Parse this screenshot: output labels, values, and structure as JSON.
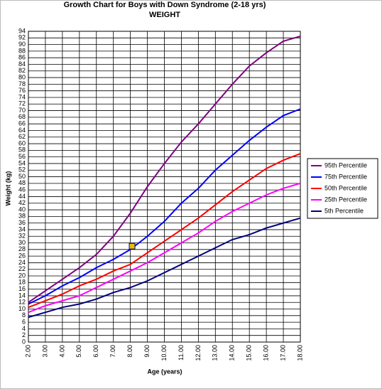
{
  "chart_data": {
    "type": "line",
    "title": "Growth Chart for Boys with Down Syndrome (2-18 yrs)",
    "subtitle": "WEIGHT",
    "x_label": "Age (years)",
    "y_label": "Weight (kg)",
    "x": [
      2,
      3,
      4,
      5,
      6,
      7,
      8,
      9,
      10,
      11,
      12,
      13,
      14,
      15,
      16,
      17,
      18
    ],
    "series": [
      {
        "name": "95th Percentile",
        "color": "#800080",
        "values": [
          12,
          15.5,
          19,
          22.5,
          26.5,
          32,
          39,
          47,
          54,
          60.5,
          66,
          72,
          78,
          83.5,
          87.5,
          91,
          92.5
        ]
      },
      {
        "name": "75th Percentile",
        "color": "#0000ff",
        "values": [
          11.5,
          14,
          17,
          19.5,
          22.5,
          25,
          28,
          32,
          36.5,
          42,
          46.5,
          52,
          56.5,
          61,
          65,
          68.5,
          70.5
        ]
      },
      {
        "name": "50th Percentile",
        "color": "#ff0000",
        "values": [
          10.5,
          12.5,
          14.5,
          17,
          19,
          21.5,
          23.5,
          27,
          30.5,
          34,
          37.5,
          41.5,
          45.5,
          49,
          52.5,
          55,
          57
        ]
      },
      {
        "name": "25th Percentile",
        "color": "#ff00ff",
        "values": [
          9,
          11,
          12.5,
          14,
          16.5,
          19,
          21.5,
          24,
          27,
          30,
          33,
          36.5,
          39.5,
          42,
          44.5,
          46.5,
          48
        ]
      },
      {
        "name": "5th Percentile",
        "color": "#000080",
        "values": [
          7.5,
          9,
          10.5,
          11.5,
          13,
          15,
          16.5,
          18.5,
          21,
          23.5,
          26,
          28.5,
          31,
          32.5,
          34.5,
          36,
          37.5
        ]
      }
    ],
    "highlight": {
      "x": 8.1,
      "y": 29,
      "color": "#e8c000"
    },
    "xlim": [
      2,
      18
    ],
    "xticks": [
      {
        "value": 2,
        "label": "2.00"
      },
      {
        "value": 3,
        "label": "3.00"
      },
      {
        "value": 4,
        "label": "4.00"
      },
      {
        "value": 5,
        "label": "5.00"
      },
      {
        "value": 6,
        "label": "6.00"
      },
      {
        "value": 7,
        "label": "7.00"
      },
      {
        "value": 8,
        "label": "8.00"
      },
      {
        "value": 9,
        "label": "9.00"
      },
      {
        "value": 10,
        "label": "10.00"
      },
      {
        "value": 11,
        "label": "11.00"
      },
      {
        "value": 12,
        "label": "12.00"
      },
      {
        "value": 13,
        "label": "13.00"
      },
      {
        "value": 14,
        "label": "14.00"
      },
      {
        "value": 15,
        "label": "15.00"
      },
      {
        "value": 16,
        "label": "16.00"
      },
      {
        "value": 17,
        "label": "17.00"
      },
      {
        "value": 18,
        "label": "18.00"
      }
    ],
    "ylim": [
      0,
      94
    ],
    "yticks": [
      0,
      2,
      4,
      6,
      8,
      10,
      12,
      14,
      16,
      18,
      20,
      22,
      24,
      26,
      28,
      30,
      32,
      34,
      36,
      38,
      40,
      42,
      44,
      46,
      48,
      50,
      52,
      54,
      56,
      58,
      60,
      62,
      64,
      66,
      68,
      70,
      72,
      74,
      76,
      78,
      80,
      82,
      84,
      86,
      88,
      90,
      92,
      94
    ],
    "grid": true,
    "legend": "right"
  }
}
